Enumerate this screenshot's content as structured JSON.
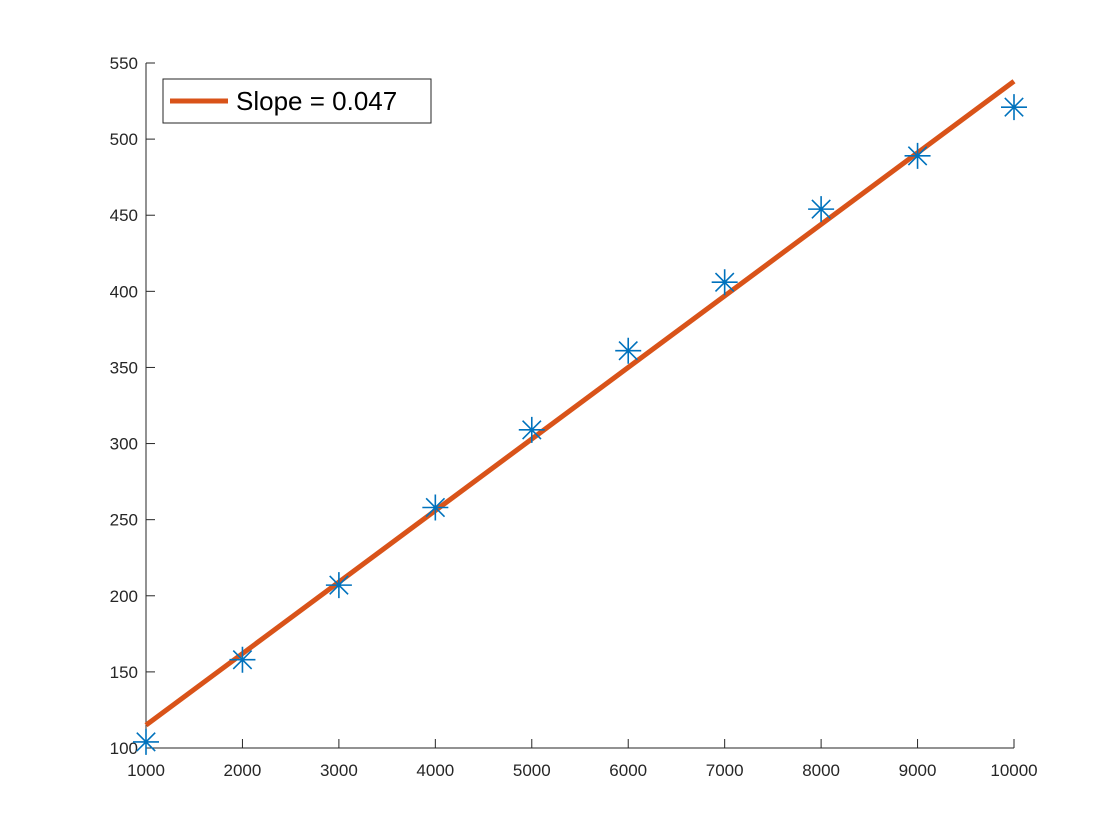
{
  "chart_data": {
    "type": "scatter",
    "xlim": [
      1000,
      10000
    ],
    "ylim": [
      100,
      550
    ],
    "x_ticks": [
      1000,
      2000,
      3000,
      4000,
      5000,
      6000,
      7000,
      8000,
      9000,
      10000
    ],
    "y_ticks": [
      100,
      150,
      200,
      250,
      300,
      350,
      400,
      450,
      500,
      550
    ],
    "grid": false,
    "legend_position": "top-left",
    "series": [
      {
        "kind": "scatter",
        "marker": "asterisk",
        "color": "#0072BD",
        "x": [
          1000,
          2000,
          3000,
          4000,
          5000,
          6000,
          7000,
          8000,
          9000,
          10000
        ],
        "y": [
          104,
          158,
          207,
          258,
          309,
          361,
          406,
          454,
          489,
          521
        ]
      },
      {
        "kind": "line",
        "name": "Slope = 0.047",
        "color": "#D95319",
        "x": [
          1000,
          10000
        ],
        "y": [
          115,
          538
        ]
      }
    ]
  }
}
